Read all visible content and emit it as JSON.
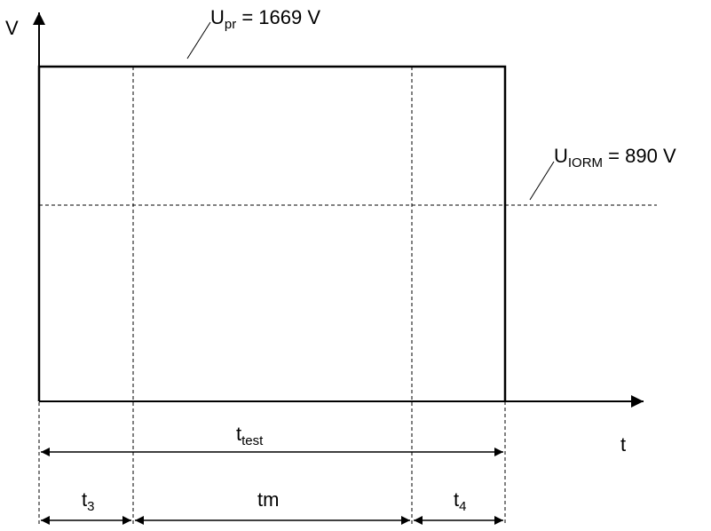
{
  "axes": {
    "y_label": "V",
    "x_label": "t"
  },
  "annotations": {
    "upr": {
      "symbol": "U",
      "subscript": "pr",
      "value": " = 1669 V"
    },
    "uiorm": {
      "symbol": "U",
      "subscript": "IORM",
      "value": " = 890 V"
    }
  },
  "intervals": {
    "ttest": {
      "symbol": "t",
      "subscript": "test"
    },
    "t3": {
      "symbol": "t",
      "subscript": "3"
    },
    "tm": {
      "symbol": "tm",
      "subscript": ""
    },
    "t4": {
      "symbol": "t",
      "subscript": "4"
    }
  },
  "colors": {
    "line": "#000000",
    "background": "#ffffff"
  }
}
